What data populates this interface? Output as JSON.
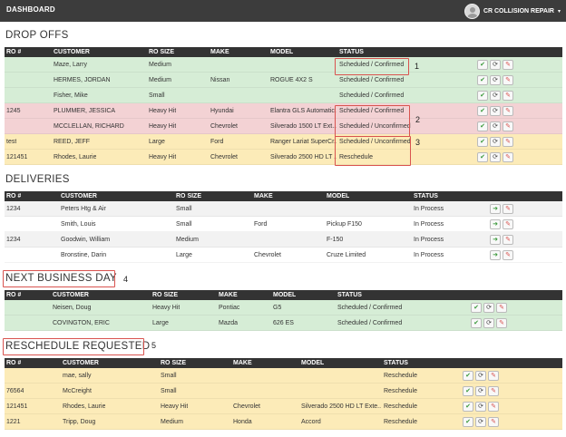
{
  "topbar": {
    "title": "DASHBOARD",
    "user": "CR COLLISION REPAIR",
    "caret": "▾"
  },
  "sections": {
    "dropoffs": {
      "title": "DROP OFFS",
      "headers": [
        "RO #",
        "CUSTOMER",
        "RO SIZE",
        "MAKE",
        "MODEL",
        "STATUS"
      ],
      "rows": [
        [
          "",
          "Maze, Larry",
          "Medium",
          "",
          "",
          "Scheduled / Confirmed"
        ],
        [
          "",
          "HERMES, JORDAN",
          "Medium",
          "Nissan",
          "ROGUE 4X2 S",
          "Scheduled / Confirmed"
        ],
        [
          "",
          "Fisher, Mike",
          "Small",
          "",
          "",
          "Scheduled / Confirmed"
        ],
        [
          "1245",
          "PLUMMER, JESSICA",
          "Heavy Hit",
          "Hyundai",
          "Elantra GLS Automatic...",
          "Scheduled / Confirmed"
        ],
        [
          "",
          "MCCLELLAN, RICHARD",
          "Heavy Hit",
          "Chevrolet",
          "Silverado 1500 LT Ext...",
          "Scheduled / Unconfirmed"
        ],
        [
          "test",
          "REED, JEFF",
          "Large",
          "Ford",
          "Ranger Lariat SuperCr...",
          "Scheduled / Unconfirmed"
        ],
        [
          "121451",
          "Rhodes, Laurie",
          "Heavy Hit",
          "Chevrolet",
          "Silverado 2500 HD LT ...",
          "Reschedule"
        ]
      ]
    },
    "deliveries": {
      "title": "DELIVERIES",
      "headers": [
        "RO #",
        "CUSTOMER",
        "RO SIZE",
        "MAKE",
        "MODEL",
        "STATUS"
      ],
      "rows": [
        [
          "1234",
          "Peters Htg & Air",
          "Small",
          "",
          "",
          "In Process"
        ],
        [
          "",
          "Smith, Louis",
          "Small",
          "Ford",
          "Pickup F150",
          "In Process"
        ],
        [
          "1234",
          "Goodwin, William",
          "Medium",
          "",
          "F-150",
          "In Process"
        ],
        [
          "",
          "Bronstine, Darin",
          "Large",
          "Chevrolet",
          "Cruze Limited",
          "In Process"
        ]
      ]
    },
    "nextday": {
      "title": "NEXT BUSINESS DAY",
      "headers": [
        "RO #",
        "CUSTOMER",
        "RO SIZE",
        "MAKE",
        "MODEL",
        "STATUS"
      ],
      "rows": [
        [
          "",
          "Neisen, Doug",
          "Heavy Hit",
          "Pontiac",
          "G5",
          "Scheduled / Confirmed"
        ],
        [
          "",
          "COVINGTON, ERIC",
          "Large",
          "Mazda",
          "626 ES",
          "Scheduled / Confirmed"
        ]
      ]
    },
    "reschedule": {
      "title": "RESCHEDULE REQUESTED",
      "headers": [
        "RO #",
        "CUSTOMER",
        "RO SIZE",
        "MAKE",
        "MODEL",
        "STATUS"
      ],
      "rows": [
        [
          "",
          "mae, sally",
          "Small",
          "",
          "",
          "Reschedule"
        ],
        [
          "76564",
          "McCreight",
          "Small",
          "",
          "",
          "Reschedule"
        ],
        [
          "121451",
          "Rhodes, Laurie",
          "Heavy Hit",
          "Chevrolet",
          "Silverado 2500 HD LT Exte...",
          "Reschedule"
        ],
        [
          "1221",
          "Tripp, Doug",
          "Medium",
          "Honda",
          "Accord",
          "Reschedule"
        ]
      ]
    }
  },
  "callouts": [
    "1",
    "2",
    "3",
    "4",
    "5"
  ],
  "icons": {
    "confirm": "check-icon",
    "refresh": "refresh-icon",
    "edit": "pencil-icon",
    "deliver": "arrow-right-icon"
  }
}
